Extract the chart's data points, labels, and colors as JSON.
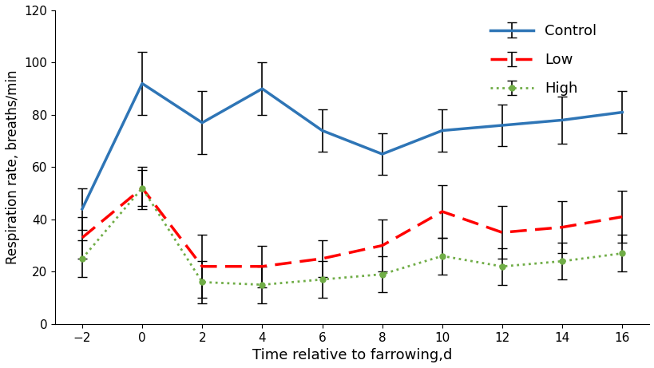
{
  "x": [
    -2,
    0,
    2,
    4,
    6,
    8,
    10,
    12,
    14,
    16
  ],
  "control_y": [
    44,
    92,
    77,
    90,
    74,
    65,
    74,
    76,
    78,
    81
  ],
  "control_err_up": [
    8,
    12,
    12,
    10,
    8,
    8,
    8,
    8,
    9,
    8
  ],
  "control_err_dn": [
    8,
    12,
    12,
    10,
    8,
    8,
    8,
    8,
    9,
    8
  ],
  "low_y": [
    33,
    52,
    22,
    22,
    25,
    30,
    43,
    35,
    37,
    41
  ],
  "low_err_up": [
    8,
    8,
    12,
    8,
    7,
    10,
    10,
    10,
    10,
    10
  ],
  "low_err_dn": [
    8,
    8,
    12,
    8,
    7,
    10,
    10,
    10,
    10,
    10
  ],
  "high_y": [
    25,
    52,
    16,
    15,
    17,
    19,
    26,
    22,
    24,
    27
  ],
  "high_err_up": [
    7,
    7,
    8,
    7,
    7,
    7,
    7,
    7,
    7,
    7
  ],
  "high_err_dn": [
    7,
    7,
    8,
    7,
    7,
    7,
    7,
    7,
    7,
    7
  ],
  "control_color": "#2E75B6",
  "low_color": "#FF0000",
  "high_color": "#70AD47",
  "xlabel": "Time relative to farrowing,d",
  "ylabel": "Respiration rate, breaths/min",
  "ylim": [
    0,
    120
  ],
  "yticks": [
    0,
    20,
    40,
    60,
    80,
    100,
    120
  ],
  "xticks": [
    -2,
    0,
    2,
    4,
    6,
    8,
    10,
    12,
    14,
    16
  ],
  "legend_labels": [
    "Control",
    "Low",
    "High"
  ],
  "figsize": [
    8.2,
    4.61
  ],
  "dpi": 100
}
